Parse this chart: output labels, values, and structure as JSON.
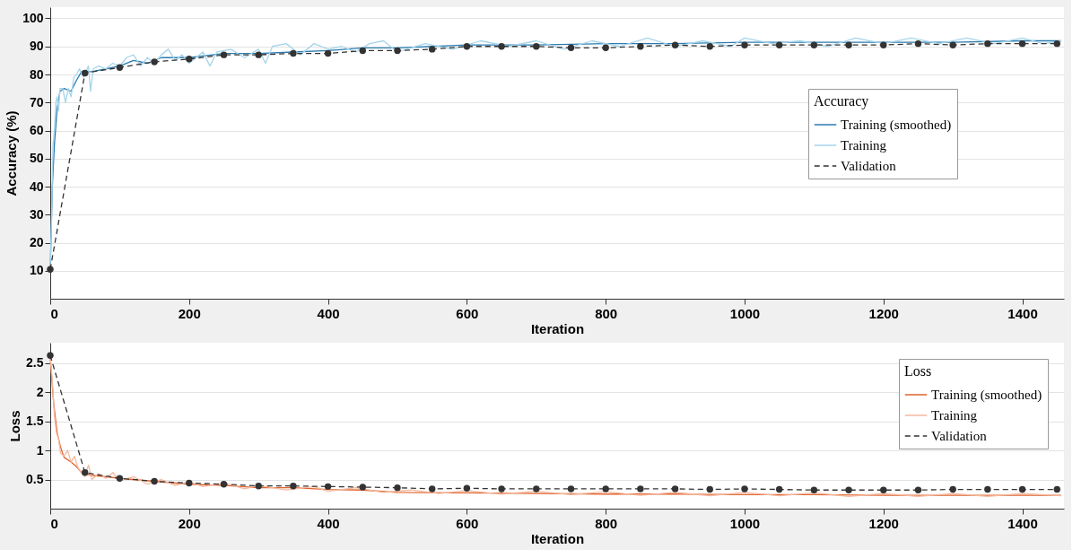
{
  "chart_data": [
    {
      "type": "line",
      "xlabel": "Iteration",
      "ylabel": "Accuracy (%)",
      "legend_title": "Accuracy",
      "legend": "right",
      "grid": "y",
      "xlim": [
        0,
        1460
      ],
      "xticks": [
        0,
        200,
        400,
        600,
        800,
        1000,
        1200,
        1400
      ],
      "ylim": [
        0,
        104
      ],
      "yticks": [
        10,
        20,
        30,
        40,
        50,
        60,
        70,
        80,
        90,
        100
      ],
      "series": [
        {
          "name": "Training (smoothed)",
          "color": "#2b7bb0",
          "line_style": "solid",
          "marker": "none",
          "x": [
            0,
            3,
            6,
            10,
            14,
            20,
            30,
            38,
            45,
            60,
            80,
            100,
            120,
            140,
            160,
            180,
            200,
            250,
            300,
            350,
            400,
            450,
            500,
            550,
            600,
            700,
            800,
            900,
            1000,
            1100,
            1200,
            1300,
            1400,
            1456
          ],
          "values": [
            10,
            40,
            55,
            68,
            74,
            75,
            74,
            78,
            81,
            81,
            82,
            83,
            85,
            84,
            86,
            86,
            86,
            87.5,
            87.5,
            88,
            88.5,
            89.5,
            89.5,
            90,
            90.5,
            90.5,
            91,
            91,
            91.5,
            91.5,
            91.5,
            91.5,
            92,
            92
          ]
        },
        {
          "name": "Training",
          "color": "#a6d5ea",
          "line_style": "solid",
          "marker": "none",
          "x": [
            0,
            2,
            4,
            6,
            8,
            10,
            12,
            14,
            18,
            22,
            26,
            30,
            34,
            38,
            42,
            48,
            55,
            58,
            62,
            70,
            80,
            90,
            100,
            110,
            120,
            130,
            140,
            150,
            160,
            170,
            180,
            190,
            200,
            220,
            230,
            240,
            260,
            280,
            300,
            310,
            320,
            340,
            360,
            380,
            400,
            420,
            440,
            460,
            480,
            500,
            540,
            580,
            620,
            660,
            700,
            740,
            780,
            820,
            860,
            900,
            940,
            980,
            1000,
            1040,
            1080,
            1120,
            1160,
            1200,
            1240,
            1280,
            1320,
            1360,
            1400,
            1430,
            1456
          ],
          "values": [
            10,
            30,
            55,
            60,
            70,
            72,
            67,
            75,
            75,
            70,
            75,
            72,
            79,
            80,
            82,
            79,
            83,
            74,
            82,
            83,
            82,
            84,
            83,
            86,
            87,
            83,
            86,
            84,
            87,
            89,
            85,
            87,
            84,
            88,
            83,
            88,
            89,
            86,
            89,
            84,
            90,
            91,
            87,
            91,
            89,
            90,
            88,
            91,
            92,
            88,
            91,
            89,
            92,
            90,
            92,
            89,
            92,
            90,
            93,
            90,
            92,
            90,
            93,
            91,
            92,
            90,
            93,
            91,
            93,
            91,
            93,
            91,
            93,
            91,
            92
          ]
        },
        {
          "name": "Validation",
          "color": "#333333",
          "line_style": "dashed",
          "marker": "circle",
          "x": [
            0,
            50,
            100,
            150,
            200,
            250,
            300,
            350,
            400,
            450,
            500,
            550,
            600,
            650,
            700,
            750,
            800,
            850,
            900,
            950,
            1000,
            1050,
            1100,
            1150,
            1200,
            1250,
            1300,
            1350,
            1400,
            1450
          ],
          "values": [
            10.5,
            80.5,
            82.5,
            84.5,
            85.5,
            87,
            87,
            87.5,
            87.5,
            88.5,
            88.5,
            89,
            90,
            90,
            90,
            89.5,
            89.5,
            90,
            90.5,
            90,
            90.5,
            90.5,
            90.5,
            90.5,
            90.5,
            91,
            90.5,
            91,
            91,
            91
          ]
        }
      ]
    },
    {
      "type": "line",
      "xlabel": "Iteration",
      "ylabel": "Loss",
      "legend_title": "Loss",
      "legend": "top right",
      "grid": "y",
      "xlim": [
        0,
        1460
      ],
      "xticks": [
        0,
        200,
        400,
        600,
        800,
        1000,
        1200,
        1400
      ],
      "ylim": [
        0,
        2.85
      ],
      "yticks": [
        0.5,
        1,
        1.5,
        2,
        2.5
      ],
      "series": [
        {
          "name": "Training (smoothed)",
          "color": "#e0622a",
          "line_style": "solid",
          "marker": "none",
          "x": [
            0,
            5,
            10,
            15,
            20,
            30,
            38,
            45,
            60,
            80,
            100,
            150,
            200,
            250,
            300,
            350,
            400,
            450,
            500,
            600,
            700,
            800,
            900,
            1000,
            1100,
            1200,
            1300,
            1400,
            1456
          ],
          "values": [
            2.6,
            1.8,
            1.3,
            1.05,
            0.88,
            0.8,
            0.72,
            0.62,
            0.57,
            0.55,
            0.52,
            0.47,
            0.42,
            0.4,
            0.36,
            0.36,
            0.33,
            0.32,
            0.28,
            0.27,
            0.26,
            0.25,
            0.25,
            0.24,
            0.24,
            0.23,
            0.23,
            0.23,
            0.23
          ]
        },
        {
          "name": "Training",
          "color": "#f4b9a0",
          "line_style": "solid",
          "marker": "none",
          "x": [
            0,
            3,
            6,
            9,
            12,
            15,
            20,
            25,
            30,
            35,
            40,
            45,
            50,
            55,
            60,
            70,
            80,
            90,
            100,
            120,
            140,
            160,
            180,
            200,
            220,
            250,
            280,
            300,
            340,
            380,
            400,
            440,
            480,
            520,
            560,
            600,
            650,
            700,
            750,
            800,
            850,
            900,
            950,
            1000,
            1050,
            1100,
            1150,
            1200,
            1250,
            1300,
            1350,
            1400,
            1456
          ],
          "values": [
            2.6,
            2.2,
            1.6,
            1.3,
            1.2,
            0.95,
            0.9,
            1.0,
            0.8,
            0.9,
            0.7,
            0.62,
            0.55,
            0.75,
            0.5,
            0.6,
            0.52,
            0.62,
            0.48,
            0.55,
            0.42,
            0.5,
            0.4,
            0.46,
            0.38,
            0.44,
            0.34,
            0.4,
            0.32,
            0.38,
            0.3,
            0.36,
            0.28,
            0.32,
            0.26,
            0.31,
            0.25,
            0.3,
            0.24,
            0.29,
            0.23,
            0.28,
            0.22,
            0.28,
            0.22,
            0.27,
            0.21,
            0.26,
            0.21,
            0.26,
            0.21,
            0.26,
            0.22
          ]
        },
        {
          "name": "Validation",
          "color": "#333333",
          "line_style": "dashed",
          "marker": "circle",
          "x": [
            0,
            50,
            100,
            150,
            200,
            250,
            300,
            350,
            400,
            450,
            500,
            550,
            600,
            650,
            700,
            750,
            800,
            850,
            900,
            950,
            1000,
            1050,
            1100,
            1150,
            1200,
            1250,
            1300,
            1350,
            1400,
            1450
          ],
          "values": [
            2.63,
            0.62,
            0.52,
            0.47,
            0.44,
            0.42,
            0.39,
            0.39,
            0.38,
            0.37,
            0.36,
            0.34,
            0.35,
            0.34,
            0.34,
            0.34,
            0.34,
            0.34,
            0.34,
            0.33,
            0.34,
            0.33,
            0.32,
            0.32,
            0.32,
            0.32,
            0.33,
            0.33,
            0.33,
            0.33
          ]
        }
      ]
    }
  ]
}
